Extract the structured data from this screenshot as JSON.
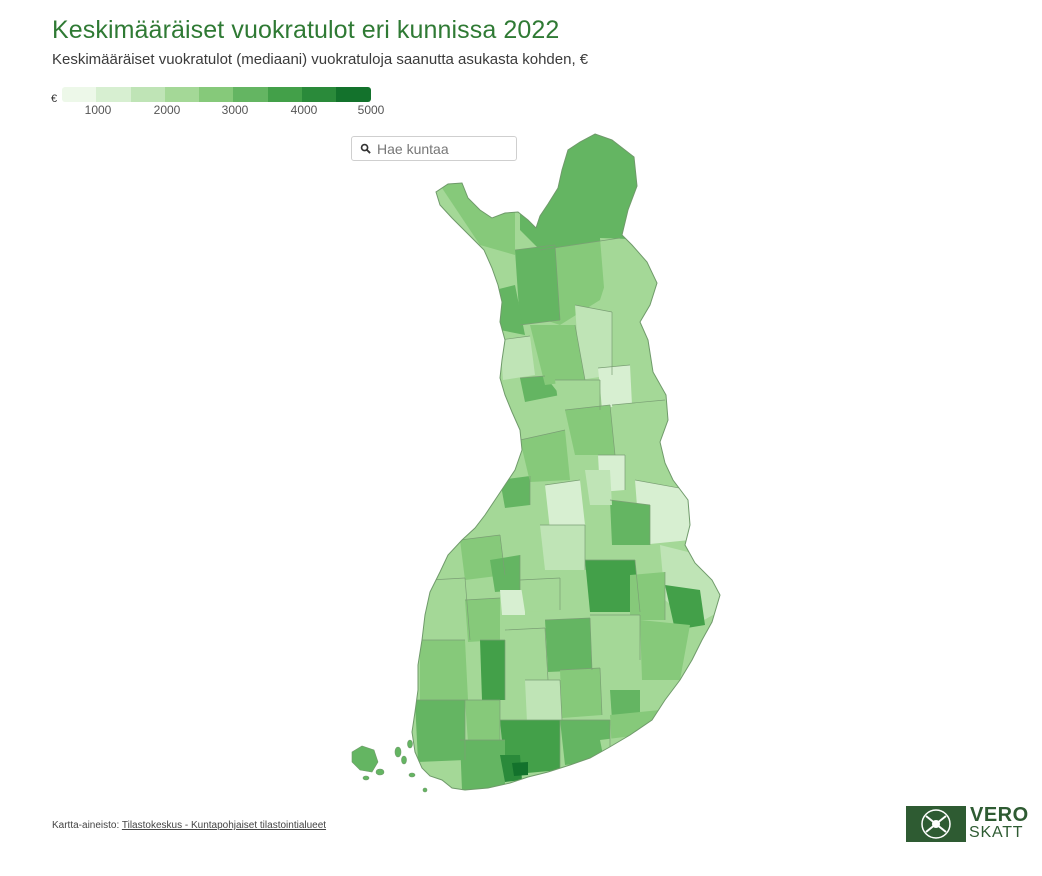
{
  "header": {
    "title": "Keskimääräiset vuokratulot eri kunnissa 2022",
    "subtitle": "Keskimääräiset vuokratulot (mediaani) vuokratuloja saanutta asukasta kohden, €"
  },
  "legend": {
    "unit": "€",
    "ticks": [
      "1000",
      "2000",
      "3000",
      "4000",
      "5000"
    ],
    "colors": [
      "#edf8e9",
      "#d7efd1",
      "#bfe4b6",
      "#a4d897",
      "#86c97a",
      "#64b562",
      "#43a049",
      "#2a8a3a",
      "#13722c"
    ]
  },
  "search": {
    "placeholder": "Hae kuntaa",
    "icon": "search-icon"
  },
  "map": {
    "region": "Suomi",
    "outline_fill": "#a4d897",
    "border_color": "#6f9a6a"
  },
  "footer": {
    "source_prefix": "Kartta-aineisto:",
    "source_link": "Tilastokeskus - Kuntapohjaiset tilastointialueet"
  },
  "logo": {
    "line1": "VERO",
    "line2": "SKATT",
    "color": "#2e5b32"
  }
}
